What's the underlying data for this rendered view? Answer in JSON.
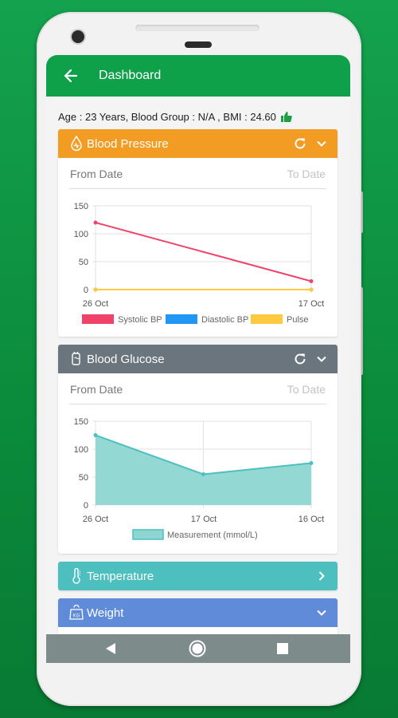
{
  "app": {
    "title": "Dashboard"
  },
  "profile": {
    "info": "Age : 23 Years, Blood Group : N/A , BMI : 24.60"
  },
  "colors": {
    "bg_green": "#0fa04a",
    "bp_header": "#f39c24",
    "glucose_header": "#6b757d",
    "temperature_header": "#4dbfbf",
    "weight_header": "#5f8bd8"
  },
  "blood_pressure": {
    "title": "Blood Pressure",
    "from_date": "From Date",
    "to_date": "To Date",
    "chart_data": {
      "type": "line",
      "categories": [
        "26 Oct",
        "17 Oct"
      ],
      "y_ticks": [
        "150",
        "100",
        "50",
        "0"
      ],
      "ylim": [
        0,
        150
      ],
      "series": [
        {
          "name": "Systolic BP",
          "values": [
            120,
            15
          ],
          "color": "#f0436a"
        },
        {
          "name": "Diastolic BP",
          "values": [
            0,
            0
          ],
          "color": "#2196f3"
        },
        {
          "name": "Pulse",
          "values": [
            0,
            0
          ],
          "color": "#ffc940"
        }
      ],
      "legend": "bottom"
    }
  },
  "blood_glucose": {
    "title": "Blood Glucose",
    "from_date": "From Date",
    "to_date": "To Date",
    "chart_data": {
      "type": "area",
      "categories": [
        "26 Oct",
        "17 Oct",
        "16 Oct"
      ],
      "y_ticks": [
        "150",
        "100",
        "50",
        "0"
      ],
      "ylim": [
        0,
        150
      ],
      "series": [
        {
          "name": "Measurement (mmol/L)",
          "values": [
            125,
            55,
            75
          ],
          "color": "#4dbfbf"
        }
      ],
      "legend": "bottom"
    }
  },
  "temperature": {
    "title": "Temperature"
  },
  "weight": {
    "title": "Weight"
  }
}
